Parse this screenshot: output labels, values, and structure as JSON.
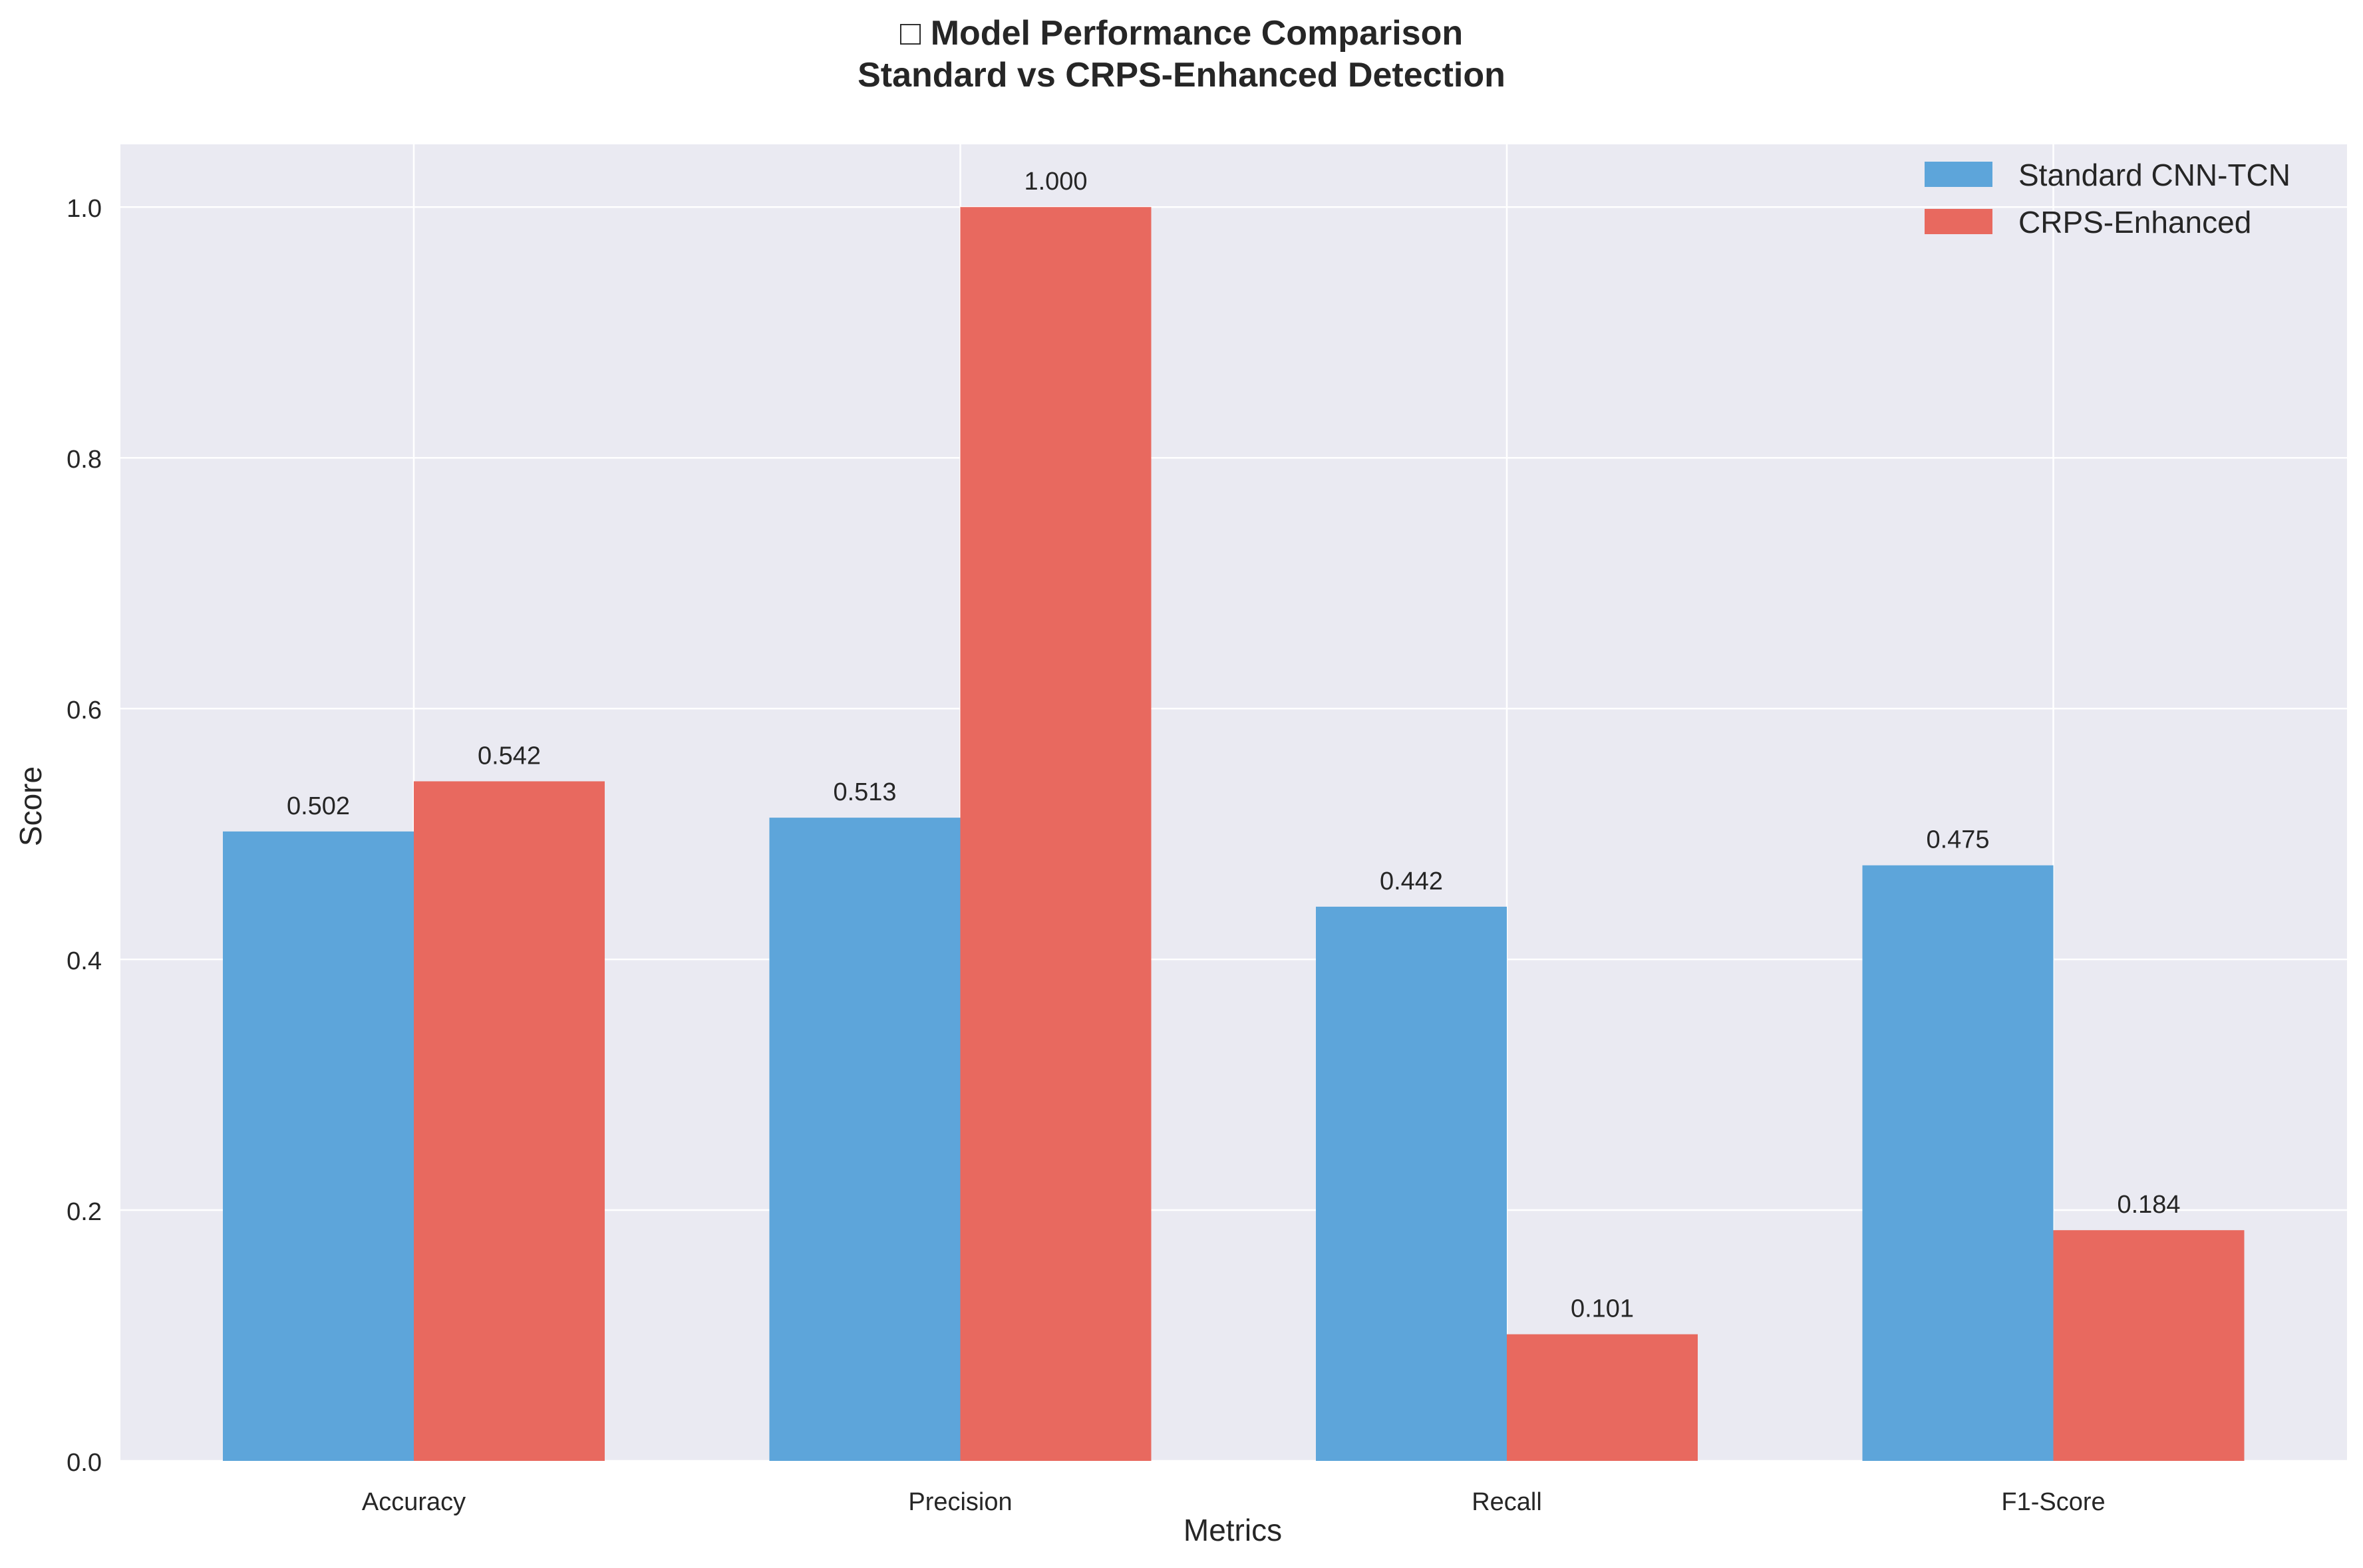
{
  "chart_data": {
    "type": "bar",
    "title_line1": "□ Model Performance Comparison",
    "title_line2": "Standard vs CRPS-Enhanced Detection",
    "xlabel": "Metrics",
    "ylabel": "Score",
    "categories": [
      "Accuracy",
      "Precision",
      "Recall",
      "F1-Score"
    ],
    "series": [
      {
        "name": "Standard CNN-TCN",
        "values": [
          0.502,
          0.513,
          0.442,
          0.475
        ],
        "color": "#5DA5DA",
        "labels": [
          "0.502",
          "0.513",
          "0.442",
          "0.475"
        ]
      },
      {
        "name": "CRPS-Enhanced",
        "values": [
          0.542,
          1.0,
          0.101,
          0.184
        ],
        "color": "#E8695F",
        "labels": [
          "0.542",
          "1.000",
          "0.101",
          "0.184"
        ]
      }
    ],
    "ylim": [
      0,
      1.05
    ],
    "yticks": [
      0.0,
      0.2,
      0.4,
      0.6,
      0.8,
      1.0
    ],
    "ytick_labels": [
      "0.0",
      "0.2",
      "0.4",
      "0.6",
      "0.8",
      "1.0"
    ],
    "grid": true,
    "legend_position": "top-right",
    "background_color": "#EAEAF2",
    "grid_color": "#FFFFFF"
  }
}
